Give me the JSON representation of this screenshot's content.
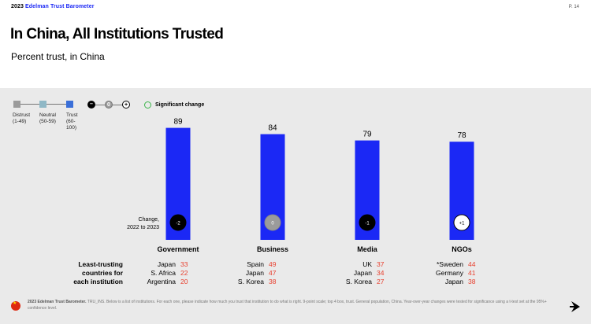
{
  "header": {
    "year": "2023",
    "brand": "Edelman Trust Barometer",
    "page": "P. 14"
  },
  "title": "In China, All Institutions Trusted",
  "subtitle": "Percent trust, in China",
  "legend": {
    "scale": [
      {
        "label": "Distrust",
        "range": "(1-49)",
        "color": "#9b9b9b"
      },
      {
        "label": "Neutral",
        "range": "(50-59)",
        "color": "#8fb8c6"
      },
      {
        "label": "Trust",
        "range": "(60-100)",
        "color": "#3a6fd8"
      }
    ],
    "change_scale": [
      {
        "symbol": "–",
        "color": "#000000"
      },
      {
        "symbol": "0",
        "color": "#9b9b9b"
      },
      {
        "symbol": "+",
        "color": "#ffffff"
      }
    ],
    "significant_change": "Significant change",
    "significant_color": "#3bb54a"
  },
  "change_label_line1": "Change,",
  "change_label_line2": "2022 to 2023",
  "colors": {
    "bar": "#1b28f5",
    "negative_change": "#000000",
    "neutral_change": "#9b9b9b",
    "positive_change": "#ffffff",
    "least_trusting_value": "#e8402f"
  },
  "chart_data": {
    "type": "bar",
    "categories": [
      "Government",
      "Business",
      "Media",
      "NGOs"
    ],
    "values": [
      89,
      84,
      79,
      78
    ],
    "changes": [
      "-2",
      "0",
      "-1",
      "+1"
    ],
    "ylim": [
      0,
      100
    ],
    "title": "In China, All Institutions Trusted"
  },
  "least_trusting": {
    "label_lines": [
      "Least-trusting",
      "countries for",
      "each institution"
    ],
    "groups": [
      {
        "institution": "Government",
        "rows": [
          {
            "country": "Japan",
            "value": "33"
          },
          {
            "country": "S. Africa",
            "value": "22"
          },
          {
            "country": "Argentina",
            "value": "20"
          }
        ]
      },
      {
        "institution": "Business",
        "rows": [
          {
            "country": "Spain",
            "value": "49"
          },
          {
            "country": "Japan",
            "value": "47"
          },
          {
            "country": "S. Korea",
            "value": "38"
          }
        ]
      },
      {
        "institution": "Media",
        "rows": [
          {
            "country": "UK",
            "value": "37"
          },
          {
            "country": "Japan",
            "value": "34"
          },
          {
            "country": "S. Korea",
            "value": "27"
          }
        ]
      },
      {
        "institution": "NGOs",
        "rows": [
          {
            "country": "*Sweden",
            "value": "44"
          },
          {
            "country": "Germany",
            "value": "41"
          },
          {
            "country": "Japan",
            "value": "38"
          }
        ]
      }
    ]
  },
  "footer": {
    "source_bold": "2023 Edelman Trust Barometer.",
    "source_text": "TRU_INS. Below is a list of institutions. For each one, please indicate how much you trust that institution to do what is right. 9-point scale; top 4 box, trust. General population, China. Year-over-year changes were tested for significance using a t-test set at the 95%+ confidence level."
  }
}
